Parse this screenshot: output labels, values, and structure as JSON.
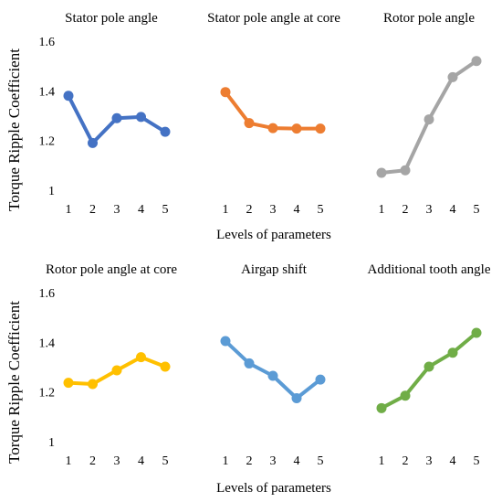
{
  "figure": {
    "ylabel": "Torque Ripple Coefficient",
    "xlabel": "Levels of parameters"
  },
  "chart_data": [
    {
      "type": "line",
      "title": "Stator pole angle",
      "x": [
        1,
        2,
        3,
        4,
        5
      ],
      "values": [
        1.38,
        1.19,
        1.29,
        1.295,
        1.235
      ],
      "ylim": [
        1,
        1.6
      ],
      "yticks": [
        "1",
        "1.2",
        "1.4",
        "1.6"
      ],
      "color": "#4472C4"
    },
    {
      "type": "line",
      "title": "Stator pole angle at core",
      "x": [
        1,
        2,
        3,
        4,
        5
      ],
      "values": [
        1.395,
        1.27,
        1.25,
        1.248,
        1.248
      ],
      "ylim": [
        1,
        1.6
      ],
      "color": "#ED7D31"
    },
    {
      "type": "line",
      "title": "Rotor pole angle",
      "x": [
        1,
        2,
        3,
        4,
        5
      ],
      "values": [
        1.07,
        1.08,
        1.285,
        1.455,
        1.52
      ],
      "ylim": [
        1,
        1.6
      ],
      "color": "#A5A5A5"
    },
    {
      "type": "line",
      "title": "Rotor pole angle at core",
      "x": [
        1,
        2,
        3,
        4,
        5
      ],
      "values": [
        1.237,
        1.232,
        1.287,
        1.34,
        1.302
      ],
      "ylim": [
        1,
        1.6
      ],
      "yticks": [
        "1",
        "1.2",
        "1.4",
        "1.6"
      ],
      "color": "#FFC000"
    },
    {
      "type": "line",
      "title": "Airgap shift",
      "x": [
        1,
        2,
        3,
        4,
        5
      ],
      "values": [
        1.405,
        1.315,
        1.265,
        1.175,
        1.25
      ],
      "ylim": [
        1,
        1.6
      ],
      "color": "#5B9BD5"
    },
    {
      "type": "line",
      "title": "Additional tooth angle",
      "x": [
        1,
        2,
        3,
        4,
        5
      ],
      "values": [
        1.135,
        1.185,
        1.302,
        1.358,
        1.438
      ],
      "ylim": [
        1,
        1.6
      ],
      "color": "#70AD47"
    }
  ]
}
